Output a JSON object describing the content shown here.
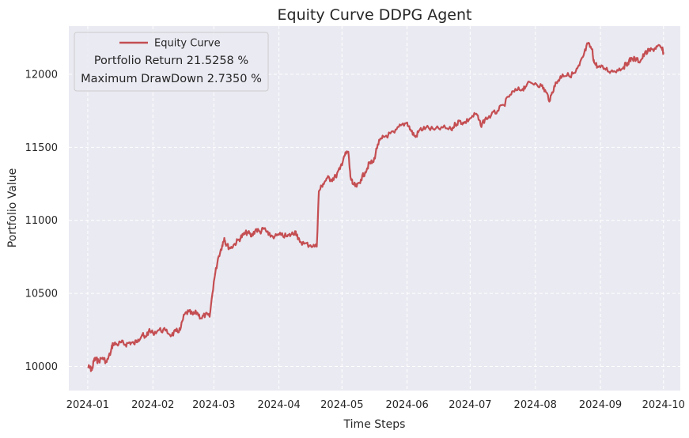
{
  "chart_data": {
    "type": "line",
    "title": "Equity Curve DDPG Agent",
    "xlabel": "Time Steps",
    "ylabel": "Portfolio Value",
    "x_axis": "dates",
    "xlim": [
      "2023-12-23",
      "2024-10-09"
    ],
    "ylim": [
      9835,
      12330
    ],
    "grid": true,
    "x_ticks": [
      "2024-01",
      "2024-02",
      "2024-03",
      "2024-04",
      "2024-05",
      "2024-06",
      "2024-07",
      "2024-08",
      "2024-09",
      "2024-10"
    ],
    "y_ticks": [
      10000,
      10500,
      11000,
      11500,
      12000
    ],
    "legend": {
      "placement": "top-left",
      "entry": "Equity Curve",
      "annotations": [
        "Portfolio Return 21.5258 %",
        "Maximum DrawDown 2.7350 %"
      ]
    },
    "series": [
      {
        "name": "Equity Curve",
        "color": "#c44e52",
        "points": [
          [
            "2024-01-01",
            10000
          ],
          [
            "2024-01-02",
            9990
          ],
          [
            "2024-01-03",
            9975
          ],
          [
            "2024-01-04",
            10045
          ],
          [
            "2024-01-05",
            10050
          ],
          [
            "2024-01-06",
            10035
          ],
          [
            "2024-01-08",
            10060
          ],
          [
            "2024-01-10",
            10030
          ],
          [
            "2024-01-12",
            10100
          ],
          [
            "2024-01-13",
            10160
          ],
          [
            "2024-01-15",
            10150
          ],
          [
            "2024-01-17",
            10165
          ],
          [
            "2024-01-19",
            10150
          ],
          [
            "2024-01-21",
            10165
          ],
          [
            "2024-01-23",
            10155
          ],
          [
            "2024-01-25",
            10185
          ],
          [
            "2024-01-27",
            10220
          ],
          [
            "2024-01-28",
            10195
          ],
          [
            "2024-01-30",
            10240
          ],
          [
            "2024-02-01",
            10230
          ],
          [
            "2024-02-04",
            10250
          ],
          [
            "2024-02-07",
            10245
          ],
          [
            "2024-02-10",
            10215
          ],
          [
            "2024-02-12",
            10240
          ],
          [
            "2024-02-14",
            10250
          ],
          [
            "2024-02-16",
            10355
          ],
          [
            "2024-02-18",
            10375
          ],
          [
            "2024-02-20",
            10355
          ],
          [
            "2024-02-22",
            10370
          ],
          [
            "2024-02-24",
            10330
          ],
          [
            "2024-02-26",
            10355
          ],
          [
            "2024-02-28",
            10340
          ],
          [
            "2024-03-01",
            10580
          ],
          [
            "2024-03-03",
            10740
          ],
          [
            "2024-03-05",
            10830
          ],
          [
            "2024-03-06",
            10880
          ],
          [
            "2024-03-07",
            10830
          ],
          [
            "2024-03-09",
            10810
          ],
          [
            "2024-03-11",
            10840
          ],
          [
            "2024-03-13",
            10870
          ],
          [
            "2024-03-15",
            10900
          ],
          [
            "2024-03-17",
            10920
          ],
          [
            "2024-03-19",
            10890
          ],
          [
            "2024-03-21",
            10940
          ],
          [
            "2024-03-23",
            10920
          ],
          [
            "2024-03-25",
            10945
          ],
          [
            "2024-03-27",
            10900
          ],
          [
            "2024-03-30",
            10890
          ],
          [
            "2024-04-02",
            10900
          ],
          [
            "2024-04-05",
            10890
          ],
          [
            "2024-04-07",
            10905
          ],
          [
            "2024-04-09",
            10925
          ],
          [
            "2024-04-10",
            10870
          ],
          [
            "2024-04-13",
            10840
          ],
          [
            "2024-04-16",
            10830
          ],
          [
            "2024-04-19",
            10820
          ],
          [
            "2024-04-20",
            11200
          ],
          [
            "2024-04-22",
            11250
          ],
          [
            "2024-04-24",
            11290
          ],
          [
            "2024-04-26",
            11280
          ],
          [
            "2024-04-28",
            11300
          ],
          [
            "2024-04-30",
            11350
          ],
          [
            "2024-05-02",
            11440
          ],
          [
            "2024-05-04",
            11470
          ],
          [
            "2024-05-05",
            11300
          ],
          [
            "2024-05-06",
            11250
          ],
          [
            "2024-05-08",
            11230
          ],
          [
            "2024-05-10",
            11280
          ],
          [
            "2024-05-12",
            11330
          ],
          [
            "2024-05-14",
            11390
          ],
          [
            "2024-05-16",
            11400
          ],
          [
            "2024-05-18",
            11520
          ],
          [
            "2024-05-20",
            11560
          ],
          [
            "2024-05-22",
            11580
          ],
          [
            "2024-05-26",
            11600
          ],
          [
            "2024-05-29",
            11650
          ],
          [
            "2024-06-01",
            11670
          ],
          [
            "2024-06-03",
            11610
          ],
          [
            "2024-06-05",
            11570
          ],
          [
            "2024-06-07",
            11620
          ],
          [
            "2024-06-10",
            11635
          ],
          [
            "2024-06-14",
            11620
          ],
          [
            "2024-06-18",
            11635
          ],
          [
            "2024-06-22",
            11620
          ],
          [
            "2024-06-24",
            11660
          ],
          [
            "2024-06-26",
            11680
          ],
          [
            "2024-06-28",
            11665
          ],
          [
            "2024-07-01",
            11700
          ],
          [
            "2024-07-04",
            11730
          ],
          [
            "2024-07-06",
            11650
          ],
          [
            "2024-07-08",
            11690
          ],
          [
            "2024-07-11",
            11720
          ],
          [
            "2024-07-14",
            11750
          ],
          [
            "2024-07-17",
            11790
          ],
          [
            "2024-07-20",
            11860
          ],
          [
            "2024-07-23",
            11890
          ],
          [
            "2024-07-26",
            11900
          ],
          [
            "2024-07-28",
            11930
          ],
          [
            "2024-08-01",
            11940
          ],
          [
            "2024-08-04",
            11920
          ],
          [
            "2024-08-06",
            11880
          ],
          [
            "2024-08-08",
            11820
          ],
          [
            "2024-08-10",
            11920
          ],
          [
            "2024-08-12",
            11960
          ],
          [
            "2024-08-14",
            12000
          ],
          [
            "2024-08-17",
            11990
          ],
          [
            "2024-08-20",
            12010
          ],
          [
            "2024-08-22",
            12060
          ],
          [
            "2024-08-24",
            12130
          ],
          [
            "2024-08-26",
            12210
          ],
          [
            "2024-08-28",
            12170
          ],
          [
            "2024-08-29",
            12080
          ],
          [
            "2024-08-31",
            12050
          ],
          [
            "2024-09-03",
            12040
          ],
          [
            "2024-09-06",
            12020
          ],
          [
            "2024-09-09",
            12030
          ],
          [
            "2024-09-12",
            12050
          ],
          [
            "2024-09-14",
            12080
          ],
          [
            "2024-09-16",
            12110
          ],
          [
            "2024-09-18",
            12100
          ],
          [
            "2024-09-20",
            12090
          ],
          [
            "2024-09-22",
            12140
          ],
          [
            "2024-09-24",
            12160
          ],
          [
            "2024-09-26",
            12170
          ],
          [
            "2024-09-28",
            12190
          ],
          [
            "2024-09-30",
            12180
          ],
          [
            "2024-10-01",
            12150
          ]
        ]
      }
    ]
  }
}
